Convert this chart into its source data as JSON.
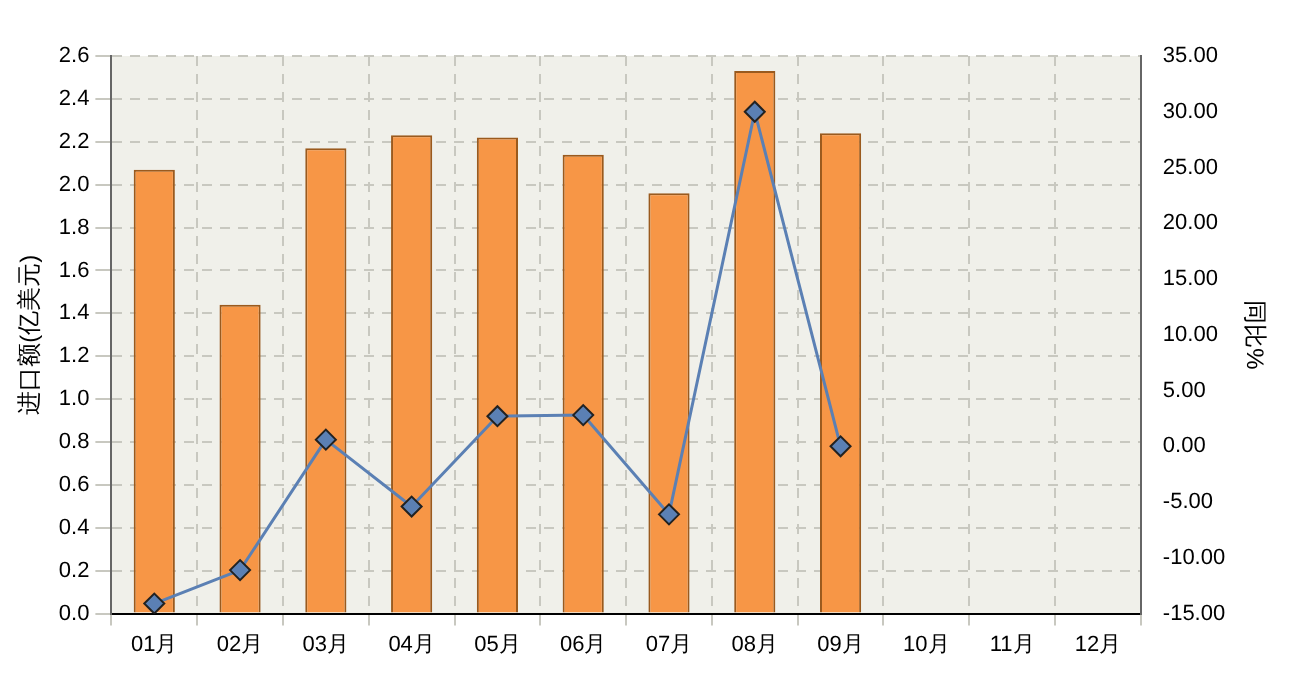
{
  "chart_data": {
    "type": "bar",
    "ylabel": "进口额(亿美元)",
    "y2label": "同比%",
    "categories": [
      "01月",
      "02月",
      "03月",
      "04月",
      "05月",
      "06月",
      "07月",
      "08月",
      "09月",
      "10月",
      "11月",
      "12月"
    ],
    "series": [
      {
        "color": "#f79646",
        "values": [
          2.07,
          1.44,
          2.17,
          2.23,
          2.22,
          2.14,
          1.96,
          2.53,
          2.24,
          null,
          null,
          null
        ]
      },
      {
        "type": "line",
        "axis": "y2",
        "color": "#5b80b4",
        "values": [
          -14.1,
          -11.1,
          0.6,
          -5.4,
          2.7,
          2.8,
          -6.1,
          30,
          0,
          null,
          null,
          null
        ]
      }
    ],
    "ylim": [
      0,
      2.6
    ],
    "yticks": [
      {
        "value": 0,
        "label": "0.0"
      },
      0.2,
      0.4,
      0.6,
      0.8,
      {
        "value": 1,
        "label": "1.0"
      },
      1.2,
      1.4,
      1.6,
      1.8,
      {
        "value": 2,
        "label": "2.0"
      },
      2.2,
      2.4,
      2.6
    ],
    "y2lim": [
      -15,
      35
    ],
    "y2ticks": [
      {
        "value": -15,
        "label": "-15.00"
      },
      {
        "value": -10,
        "label": "-10.00"
      },
      {
        "value": -5,
        "label": "-5.00"
      },
      {
        "value": 0,
        "label": "0.00"
      },
      {
        "value": 5,
        "label": "5.00"
      },
      {
        "value": 10,
        "label": "10.00"
      },
      {
        "value": 15,
        "label": "15.00"
      },
      {
        "value": 20,
        "label": "20.00"
      },
      {
        "value": 25,
        "label": "25.00"
      },
      {
        "value": 30,
        "label": "30.00"
      },
      {
        "value": 35,
        "label": "35.00"
      }
    ],
    "grid": true,
    "legend": false,
    "marker": "diamond",
    "line_style": "solid"
  }
}
